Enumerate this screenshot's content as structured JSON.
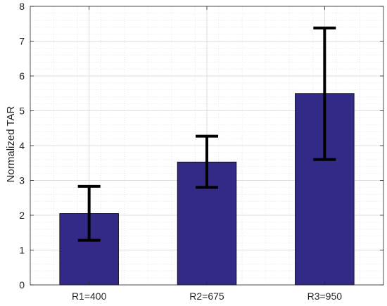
{
  "chart_data": {
    "type": "bar",
    "title": "",
    "xlabel": "",
    "ylabel": "Normalized TAR",
    "categories": [
      "R1=400",
      "R2=675",
      "R3=950"
    ],
    "values": [
      2.05,
      3.53,
      5.5
    ],
    "error_low": [
      1.28,
      2.8,
      3.6
    ],
    "error_high": [
      2.83,
      4.27,
      7.38
    ],
    "ylim": [
      0,
      8
    ],
    "yticks": [
      "0",
      "1",
      "2",
      "3",
      "4",
      "5",
      "6",
      "7",
      "8"
    ],
    "grid": true,
    "minor_grid": true,
    "bar_color": "#332a87",
    "error_color": "#000000"
  }
}
